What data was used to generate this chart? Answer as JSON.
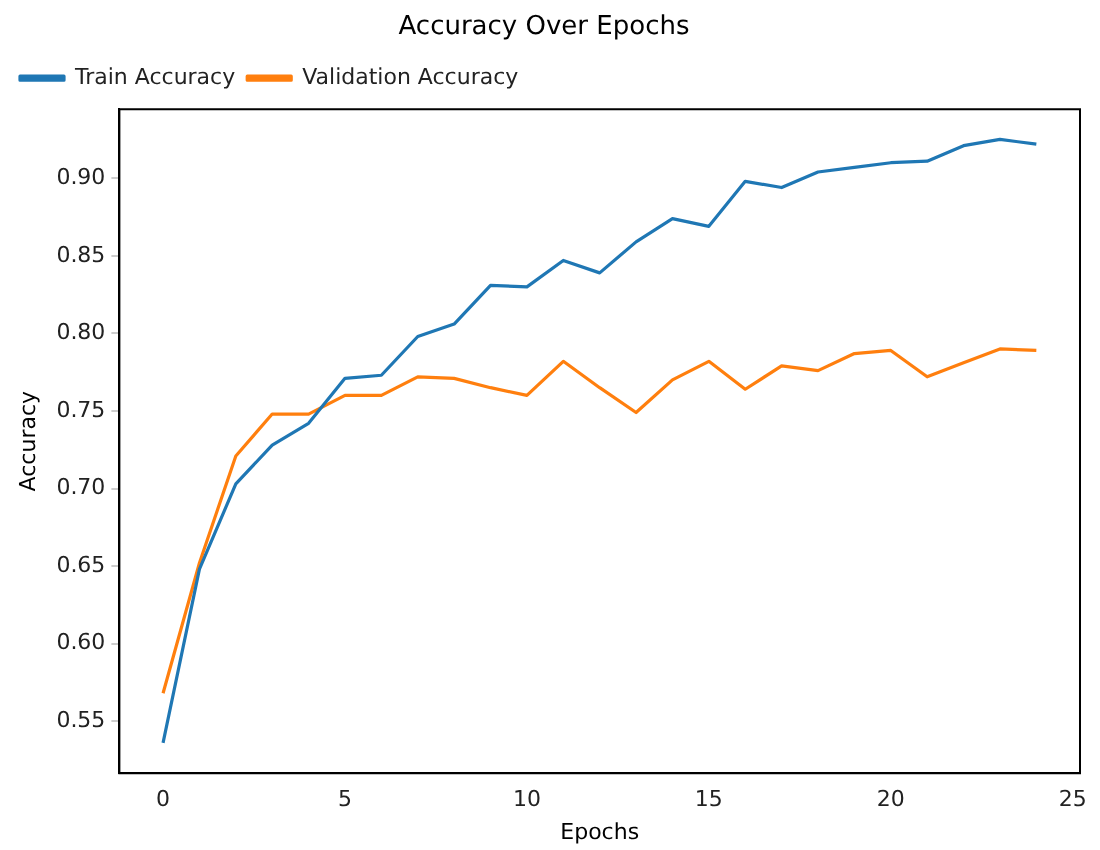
{
  "chart_data": {
    "type": "line",
    "title": "Accuracy Over Epochs",
    "xlabel": "Epochs",
    "ylabel": "Accuracy",
    "x": [
      0,
      1,
      2,
      3,
      4,
      5,
      6,
      7,
      8,
      9,
      10,
      11,
      12,
      13,
      14,
      15,
      16,
      17,
      18,
      19,
      20,
      21,
      22,
      23,
      24
    ],
    "series": [
      {
        "name": "Train Accuracy",
        "color": "#1f77b4",
        "values": [
          0.536,
          0.648,
          0.703,
          0.728,
          0.742,
          0.771,
          0.773,
          0.798,
          0.806,
          0.831,
          0.83,
          0.847,
          0.839,
          0.859,
          0.874,
          0.869,
          0.898,
          0.894,
          0.904,
          0.907,
          0.91,
          0.911,
          0.921,
          0.925,
          0.922
        ]
      },
      {
        "name": "Validation Accuracy",
        "color": "#ff7f0e",
        "values": [
          0.568,
          0.652,
          0.721,
          0.748,
          0.748,
          0.76,
          0.76,
          0.772,
          0.771,
          0.765,
          0.76,
          0.782,
          0.765,
          0.749,
          0.77,
          0.782,
          0.764,
          0.779,
          0.776,
          0.787,
          0.789,
          0.772,
          0.781,
          0.79,
          0.789
        ]
      }
    ],
    "xlim": [
      -1.2,
      25.2
    ],
    "xticks": [
      0,
      5,
      10,
      15,
      20,
      25
    ],
    "ylim": [
      0.5165,
      0.9445
    ],
    "yticks": [
      {
        "value": 0.55,
        "label": "0.55"
      },
      {
        "value": 0.6,
        "label": "0.60"
      },
      {
        "value": 0.65,
        "label": "0.65"
      },
      {
        "value": 0.7,
        "label": "0.70"
      },
      {
        "value": 0.75,
        "label": "0.75"
      },
      {
        "value": 0.8,
        "label": "0.80"
      },
      {
        "value": 0.85,
        "label": "0.85"
      },
      {
        "value": 0.9,
        "label": "0.90"
      }
    ],
    "grid": false,
    "legend": "top left",
    "marker": "none",
    "line_style": "solid"
  }
}
